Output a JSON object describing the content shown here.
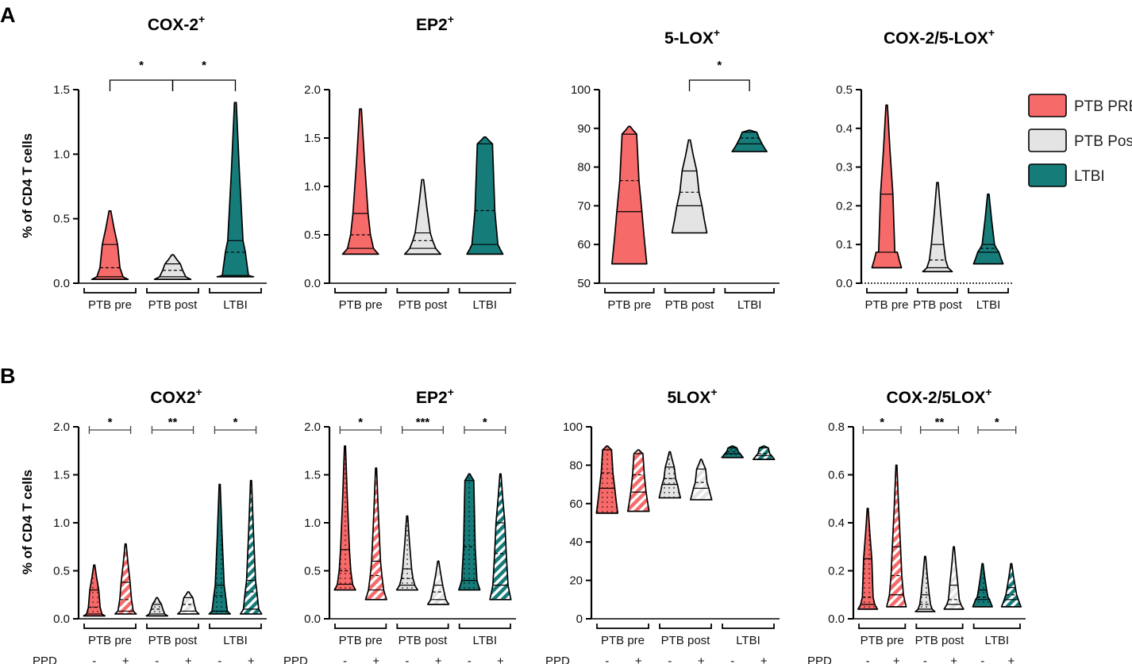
{
  "figure": {
    "panel_labels": [
      "A",
      "B"
    ],
    "ylabel": "% of CD4 T cells",
    "ppd_label": "PPD",
    "ppd_neg": "-",
    "ppd_pos": "+",
    "legend": [
      {
        "label": "PTB PRE",
        "color": "#F66A6A"
      },
      {
        "label": "PTB Post",
        "color": "#E4E4E4"
      },
      {
        "label": "LTBI",
        "color": "#167C7A"
      }
    ],
    "colors": {
      "ptb_pre": "#F66A6A",
      "ptb_post": "#E4E4E4",
      "ltbi": "#167C7A",
      "dark_pre": "#8E2F2F",
      "dark_ltbi": "#0A3B3A"
    }
  },
  "chart_data": [
    {
      "type": "violin",
      "panel": "A",
      "title": "COX-2",
      "title_sup": "+",
      "ylabel": "% of CD4 T cells",
      "ylim": [
        0,
        1.5
      ],
      "yticks": [
        0.0,
        0.5,
        1.0,
        1.5
      ],
      "tick_labels": [
        "0.0",
        "0.5",
        "1.0",
        "1.5"
      ],
      "groups": [
        "PTB pre",
        "PTB post",
        "LTBI"
      ],
      "series": [
        {
          "name": "PTB pre",
          "min": 0.03,
          "max": 0.56,
          "q1": 0.05,
          "median": 0.12,
          "q3": 0.3
        },
        {
          "name": "PTB post",
          "min": 0.03,
          "max": 0.22,
          "q1": 0.05,
          "median": 0.1,
          "q3": 0.15
        },
        {
          "name": "LTBI",
          "min": 0.05,
          "max": 1.4,
          "q1": 0.06,
          "median": 0.24,
          "q3": 0.33
        }
      ],
      "significance": [
        {
          "from": 0,
          "to": 1,
          "label": "*"
        },
        {
          "from": 1,
          "to": 2,
          "label": "*"
        }
      ]
    },
    {
      "type": "violin",
      "panel": "A",
      "title": "EP2",
      "title_sup": "+",
      "ylabel": "",
      "ylim": [
        0,
        2.0
      ],
      "yticks": [
        0.0,
        0.5,
        1.0,
        1.5,
        2.0
      ],
      "tick_labels": [
        "0.0",
        "0.5",
        "1.0",
        "1.5",
        "2.0"
      ],
      "groups": [
        "PTB pre",
        "PTB post",
        "LTBI"
      ],
      "series": [
        {
          "name": "PTB pre",
          "min": 0.3,
          "max": 1.8,
          "q1": 0.36,
          "median": 0.5,
          "q3": 0.72
        },
        {
          "name": "PTB post",
          "min": 0.3,
          "max": 1.07,
          "q1": 0.36,
          "median": 0.44,
          "q3": 0.52
        },
        {
          "name": "LTBI",
          "min": 0.3,
          "max": 1.51,
          "q1": 0.4,
          "median": 0.75,
          "q3": 1.44
        }
      ],
      "significance": []
    },
    {
      "type": "violin",
      "panel": "A",
      "title": "5-LOX",
      "title_sup": "+",
      "ylabel": "",
      "ylim": [
        50,
        100
      ],
      "yticks": [
        50,
        60,
        70,
        80,
        90,
        100
      ],
      "tick_labels": [
        "50",
        "60",
        "70",
        "80",
        "90",
        "100"
      ],
      "groups": [
        "PTB pre",
        "PTB post",
        "LTBI"
      ],
      "series": [
        {
          "name": "PTB pre",
          "min": 55,
          "max": 90.5,
          "q1": 68.5,
          "median": 76.5,
          "q3": 88.5
        },
        {
          "name": "PTB post",
          "min": 63,
          "max": 87,
          "q1": 70,
          "median": 73.5,
          "q3": 79
        },
        {
          "name": "LTBI",
          "min": 84,
          "max": 89.5,
          "q1": 86,
          "median": 87.5,
          "q3": 89
        }
      ],
      "significance": [
        {
          "from": 1,
          "to": 2,
          "label": "*"
        }
      ]
    },
    {
      "type": "violin",
      "panel": "A",
      "title": "COX-2/5-LOX",
      "title_sup": "+",
      "ylabel": "",
      "ylim": [
        0,
        0.5
      ],
      "yticks": [
        0.0,
        0.1,
        0.2,
        0.3,
        0.4,
        0.5
      ],
      "tick_labels": [
        "0.0",
        "0.1",
        "0.2",
        "0.3",
        "0.4",
        "0.5"
      ],
      "groups": [
        "PTB pre",
        "PTB post",
        "LTBI"
      ],
      "series": [
        {
          "name": "PTB pre",
          "min": 0.04,
          "max": 0.46,
          "q1": 0.08,
          "median": 0.08,
          "q3": 0.23
        },
        {
          "name": "PTB post",
          "min": 0.03,
          "max": 0.26,
          "q1": 0.04,
          "median": 0.06,
          "q3": 0.1
        },
        {
          "name": "LTBI",
          "min": 0.05,
          "max": 0.23,
          "q1": 0.08,
          "median": 0.09,
          "q3": 0.1
        }
      ],
      "significance": []
    },
    {
      "type": "violin",
      "panel": "B",
      "title": "COX2",
      "title_sup": "+",
      "ylabel": "% of CD4 T cells",
      "ylim": [
        0,
        2.0
      ],
      "yticks": [
        0.0,
        0.5,
        1.0,
        1.5,
        2.0
      ],
      "tick_labels": [
        "0.0",
        "0.5",
        "1.0",
        "1.5",
        "2.0"
      ],
      "groups": [
        "PTB pre",
        "PTB post",
        "LTBI"
      ],
      "ppd": true,
      "series": [
        {
          "name": "PTB pre",
          "ppd": "-",
          "min": 0.03,
          "max": 0.56,
          "q1": 0.05,
          "median": 0.12,
          "q3": 0.3
        },
        {
          "name": "PTB pre",
          "ppd": "+",
          "min": 0.05,
          "max": 0.78,
          "q1": 0.08,
          "median": 0.2,
          "q3": 0.38
        },
        {
          "name": "PTB post",
          "ppd": "-",
          "min": 0.03,
          "max": 0.22,
          "q1": 0.05,
          "median": 0.1,
          "q3": 0.15
        },
        {
          "name": "PTB post",
          "ppd": "+",
          "min": 0.05,
          "max": 0.28,
          "q1": 0.08,
          "median": 0.15,
          "q3": 0.22
        },
        {
          "name": "LTBI",
          "ppd": "-",
          "min": 0.05,
          "max": 1.4,
          "q1": 0.08,
          "median": 0.24,
          "q3": 0.35
        },
        {
          "name": "LTBI",
          "ppd": "+",
          "min": 0.05,
          "max": 1.44,
          "q1": 0.1,
          "median": 0.28,
          "q3": 0.4
        }
      ],
      "significance": [
        {
          "group": 0,
          "label": "*"
        },
        {
          "group": 1,
          "label": "**"
        },
        {
          "group": 2,
          "label": "*"
        }
      ]
    },
    {
      "type": "violin",
      "panel": "B",
      "title": "EP2",
      "title_sup": "+",
      "ylabel": "",
      "ylim": [
        0,
        2.0
      ],
      "yticks": [
        0.0,
        0.5,
        1.0,
        1.5,
        2.0
      ],
      "tick_labels": [
        "0.0",
        "0.5",
        "1.0",
        "1.5",
        "2.0"
      ],
      "groups": [
        "PTB pre",
        "PTB post",
        "LTBI"
      ],
      "ppd": true,
      "series": [
        {
          "name": "PTB pre",
          "ppd": "-",
          "min": 0.3,
          "max": 1.8,
          "q1": 0.36,
          "median": 0.5,
          "q3": 0.72
        },
        {
          "name": "PTB pre",
          "ppd": "+",
          "min": 0.2,
          "max": 1.57,
          "q1": 0.3,
          "median": 0.45,
          "q3": 0.6
        },
        {
          "name": "PTB post",
          "ppd": "-",
          "min": 0.3,
          "max": 1.07,
          "q1": 0.35,
          "median": 0.42,
          "q3": 0.52
        },
        {
          "name": "PTB post",
          "ppd": "+",
          "min": 0.15,
          "max": 0.6,
          "q1": 0.2,
          "median": 0.28,
          "q3": 0.35
        },
        {
          "name": "LTBI",
          "ppd": "-",
          "min": 0.3,
          "max": 1.51,
          "q1": 0.4,
          "median": 0.75,
          "q3": 1.44
        },
        {
          "name": "LTBI",
          "ppd": "+",
          "min": 0.2,
          "max": 1.51,
          "q1": 0.35,
          "median": 0.68,
          "q3": 1.0
        }
      ],
      "significance": [
        {
          "group": 0,
          "label": "*"
        },
        {
          "group": 1,
          "label": "***"
        },
        {
          "group": 2,
          "label": "*"
        }
      ]
    },
    {
      "type": "violin",
      "panel": "B",
      "title": "5LOX",
      "title_sup": "+",
      "ylabel": "",
      "ylim": [
        0,
        100
      ],
      "yticks": [
        0,
        20,
        40,
        60,
        80,
        100
      ],
      "tick_labels": [
        "0",
        "20",
        "40",
        "60",
        "80",
        "100"
      ],
      "groups": [
        "PTB pre",
        "PTB post",
        "LTBI"
      ],
      "ppd": true,
      "series": [
        {
          "name": "PTB pre",
          "ppd": "-",
          "min": 55,
          "max": 90,
          "q1": 68,
          "median": 76,
          "q3": 88
        },
        {
          "name": "PTB pre",
          "ppd": "+",
          "min": 56,
          "max": 88,
          "q1": 66,
          "median": 75,
          "q3": 86
        },
        {
          "name": "PTB post",
          "ppd": "-",
          "min": 63,
          "max": 87,
          "q1": 70,
          "median": 73,
          "q3": 79
        },
        {
          "name": "PTB post",
          "ppd": "+",
          "min": 62,
          "max": 83,
          "q1": 68,
          "median": 71,
          "q3": 78
        },
        {
          "name": "LTBI",
          "ppd": "-",
          "min": 84,
          "max": 90,
          "q1": 86,
          "median": 87,
          "q3": 89
        },
        {
          "name": "LTBI",
          "ppd": "+",
          "min": 83,
          "max": 90,
          "q1": 85,
          "median": 86,
          "q3": 89
        }
      ],
      "significance": []
    },
    {
      "type": "violin",
      "panel": "B",
      "title": "COX-2/5LOX",
      "title_sup": "+",
      "ylabel": "",
      "ylim": [
        0,
        0.8
      ],
      "yticks": [
        0.0,
        0.2,
        0.4,
        0.6,
        0.8
      ],
      "tick_labels": [
        "0.0",
        "0.2",
        "0.4",
        "0.6",
        "0.8"
      ],
      "groups": [
        "PTB pre",
        "PTB post",
        "LTBI"
      ],
      "ppd": true,
      "series": [
        {
          "name": "PTB pre",
          "ppd": "-",
          "min": 0.04,
          "max": 0.46,
          "q1": 0.06,
          "median": 0.09,
          "q3": 0.25
        },
        {
          "name": "PTB pre",
          "ppd": "+",
          "min": 0.05,
          "max": 0.64,
          "q1": 0.1,
          "median": 0.18,
          "q3": 0.3
        },
        {
          "name": "PTB post",
          "ppd": "-",
          "min": 0.03,
          "max": 0.26,
          "q1": 0.04,
          "median": 0.06,
          "q3": 0.1
        },
        {
          "name": "PTB post",
          "ppd": "+",
          "min": 0.04,
          "max": 0.3,
          "q1": 0.06,
          "median": 0.08,
          "q3": 0.14
        },
        {
          "name": "LTBI",
          "ppd": "-",
          "min": 0.05,
          "max": 0.23,
          "q1": 0.08,
          "median": 0.09,
          "q3": 0.12
        },
        {
          "name": "LTBI",
          "ppd": "+",
          "min": 0.05,
          "max": 0.23,
          "q1": 0.08,
          "median": 0.1,
          "q3": 0.13
        }
      ],
      "significance": [
        {
          "group": 0,
          "label": "*"
        },
        {
          "group": 1,
          "label": "**"
        },
        {
          "group": 2,
          "label": "*"
        }
      ]
    }
  ]
}
